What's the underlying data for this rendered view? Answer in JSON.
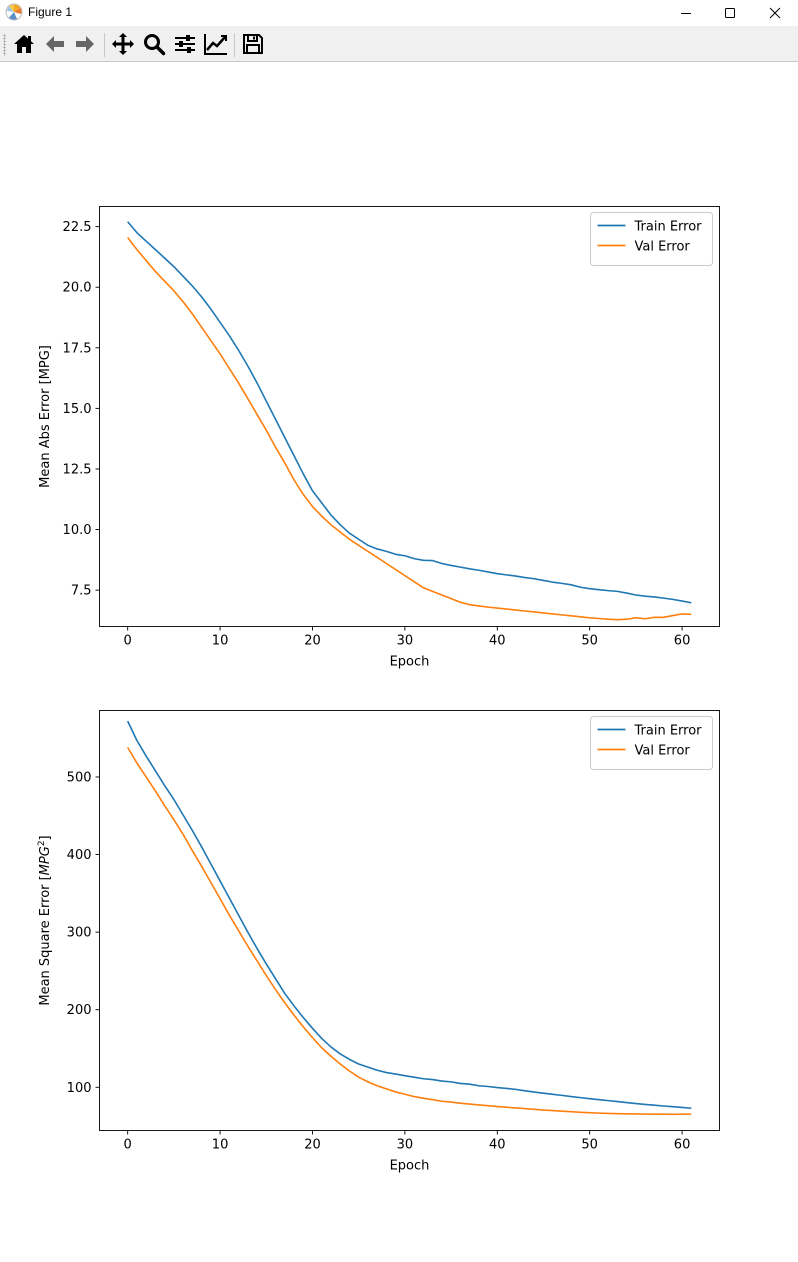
{
  "window": {
    "title": "Figure 1"
  },
  "toolbar": {
    "buttons": [
      {
        "name": "home",
        "icon": "home-icon"
      },
      {
        "name": "back",
        "icon": "arrow-left-icon"
      },
      {
        "name": "forward",
        "icon": "arrow-right-icon"
      },
      {
        "name": "pan",
        "icon": "move-icon"
      },
      {
        "name": "zoom",
        "icon": "search-icon"
      },
      {
        "name": "configure-subplots",
        "icon": "sliders-icon"
      },
      {
        "name": "edit-axis",
        "icon": "line-chart-icon"
      },
      {
        "name": "save",
        "icon": "floppy-disk-icon"
      }
    ]
  },
  "colors": {
    "train": "#1f77b4",
    "val": "#ff7f0e"
  },
  "chart_data": [
    {
      "type": "line",
      "xlabel": "Epoch",
      "ylabel": "Mean Abs Error [MPG]",
      "xlim": [
        -3.05,
        64.05
      ],
      "ylim": [
        6.0,
        23.33
      ],
      "xticks": [
        0,
        10,
        20,
        30,
        40,
        50,
        60
      ],
      "xtick_labels": [
        "0",
        "10",
        "20",
        "30",
        "40",
        "50",
        "60"
      ],
      "yticks": [
        7.5,
        10.0,
        12.5,
        15.0,
        17.5,
        20.0,
        22.5
      ],
      "ytick_labels": [
        "7.5",
        "10.0",
        "12.5",
        "15.0",
        "17.5",
        "20.0",
        "22.5"
      ],
      "legend": "top-right",
      "series": [
        {
          "name": "Train Error",
          "color": "#1f77b4",
          "values": [
            22.7,
            22.25,
            21.9,
            21.55,
            21.2,
            20.85,
            20.45,
            20.05,
            19.6,
            19.1,
            18.55,
            18.0,
            17.4,
            16.75,
            16.05,
            15.3,
            14.55,
            13.8,
            13.05,
            12.3,
            11.6,
            11.1,
            10.6,
            10.2,
            9.85,
            9.6,
            9.35,
            9.2,
            9.1,
            8.98,
            8.92,
            8.8,
            8.73,
            8.72,
            8.6,
            8.52,
            8.45,
            8.38,
            8.32,
            8.25,
            8.18,
            8.13,
            8.08,
            8.02,
            7.97,
            7.9,
            7.83,
            7.78,
            7.72,
            7.62,
            7.56,
            7.52,
            7.48,
            7.45,
            7.38,
            7.3,
            7.25,
            7.22,
            7.17,
            7.12,
            7.05,
            6.98
          ]
        },
        {
          "name": "Val Error",
          "color": "#ff7f0e",
          "values": [
            22.05,
            21.55,
            21.1,
            20.65,
            20.25,
            19.85,
            19.4,
            18.9,
            18.35,
            17.8,
            17.25,
            16.65,
            16.05,
            15.4,
            14.75,
            14.1,
            13.4,
            12.75,
            12.05,
            11.45,
            10.95,
            10.55,
            10.2,
            9.9,
            9.6,
            9.35,
            9.1,
            8.85,
            8.6,
            8.35,
            8.1,
            7.85,
            7.6,
            7.45,
            7.3,
            7.15,
            7.0,
            6.9,
            6.85,
            6.8,
            6.76,
            6.72,
            6.68,
            6.64,
            6.6,
            6.56,
            6.52,
            6.48,
            6.44,
            6.4,
            6.36,
            6.33,
            6.3,
            6.28,
            6.3,
            6.36,
            6.32,
            6.38,
            6.38,
            6.45,
            6.52,
            6.5
          ]
        }
      ]
    },
    {
      "type": "line",
      "xlabel": "Epoch",
      "ylabel_prefix": "Mean Square Error [",
      "ylabel_math": "MPG",
      "ylabel_sup": "2",
      "ylabel_suffix": "]",
      "xlim": [
        -3.05,
        64.05
      ],
      "ylim": [
        44.3,
        585.7
      ],
      "xticks": [
        0,
        10,
        20,
        30,
        40,
        50,
        60
      ],
      "xtick_labels": [
        "0",
        "10",
        "20",
        "30",
        "40",
        "50",
        "60"
      ],
      "yticks": [
        100,
        200,
        300,
        400,
        500
      ],
      "ytick_labels": [
        "100",
        "200",
        "300",
        "400",
        "500"
      ],
      "legend": "top-right",
      "series": [
        {
          "name": "Train Error",
          "color": "#1f77b4",
          "values": [
            572,
            547,
            527,
            508,
            489,
            471,
            451,
            431,
            410,
            388,
            366,
            344,
            322,
            300,
            279,
            259,
            240,
            221,
            205,
            190,
            176,
            163,
            152,
            143,
            136,
            130,
            126,
            122,
            119,
            117,
            115,
            113,
            111,
            110,
            108,
            107,
            105,
            104,
            102,
            101,
            99.7,
            98.5,
            97.3,
            95.5,
            93.9,
            92.4,
            91.0,
            89.6,
            88.1,
            86.7,
            85.3,
            84.0,
            82.8,
            81.6,
            80.3,
            79.0,
            77.9,
            76.9,
            75.9,
            75.0,
            74.0,
            73.0
          ]
        },
        {
          "name": "Val Error",
          "color": "#ff7f0e",
          "values": [
            538,
            518,
            500,
            482,
            463,
            445,
            426,
            405,
            385,
            364,
            343,
            322,
            302,
            282,
            263,
            244,
            226,
            209,
            193,
            178,
            164,
            151,
            140,
            130,
            121,
            113,
            107,
            102,
            98,
            94,
            91,
            88,
            86,
            84,
            82,
            81,
            79.5,
            78.4,
            77.3,
            76.3,
            75.2,
            74.3,
            73.4,
            72.5,
            71.6,
            70.7,
            70.0,
            69.2,
            68.5,
            67.8,
            67.2,
            66.7,
            66.3,
            66.0,
            65.8,
            65.6,
            65.4,
            65.3,
            65.3,
            65.2,
            65.3,
            65.4
          ]
        }
      ]
    }
  ]
}
